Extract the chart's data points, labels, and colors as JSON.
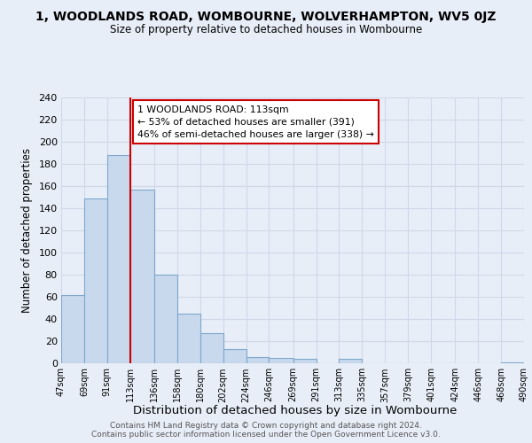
{
  "title": "1, WOODLANDS ROAD, WOMBOURNE, WOLVERHAMPTON, WV5 0JZ",
  "subtitle": "Size of property relative to detached houses in Wombourne",
  "xlabel": "Distribution of detached houses by size in Wombourne",
  "ylabel": "Number of detached properties",
  "bar_edges": [
    47,
    69,
    91,
    113,
    136,
    158,
    180,
    202,
    224,
    246,
    269,
    291,
    313,
    335,
    357,
    379,
    401,
    424,
    446,
    468,
    490
  ],
  "bar_heights": [
    62,
    149,
    188,
    157,
    80,
    45,
    27,
    13,
    6,
    5,
    4,
    0,
    4,
    0,
    0,
    0,
    0,
    0,
    0,
    1
  ],
  "bar_color": "#c8d8ed",
  "bar_edge_color": "#7fa8cc",
  "vline_x": 113,
  "vline_color": "#cc0000",
  "annotation_text": "1 WOODLANDS ROAD: 113sqm\n← 53% of detached houses are smaller (391)\n46% of semi-detached houses are larger (338) →",
  "annotation_box_color": "white",
  "annotation_box_edge_color": "#cc0000",
  "ylim": [
    0,
    240
  ],
  "yticks": [
    0,
    20,
    40,
    60,
    80,
    100,
    120,
    140,
    160,
    180,
    200,
    220,
    240
  ],
  "tick_labels": [
    "47sqm",
    "69sqm",
    "91sqm",
    "113sqm",
    "136sqm",
    "158sqm",
    "180sqm",
    "202sqm",
    "224sqm",
    "246sqm",
    "269sqm",
    "291sqm",
    "313sqm",
    "335sqm",
    "357sqm",
    "379sqm",
    "401sqm",
    "424sqm",
    "446sqm",
    "468sqm",
    "490sqm"
  ],
  "footer1": "Contains HM Land Registry data © Crown copyright and database right 2024.",
  "footer2": "Contains public sector information licensed under the Open Government Licence v3.0.",
  "bg_color": "#e8eef8",
  "grid_color": "#d0d8e8"
}
